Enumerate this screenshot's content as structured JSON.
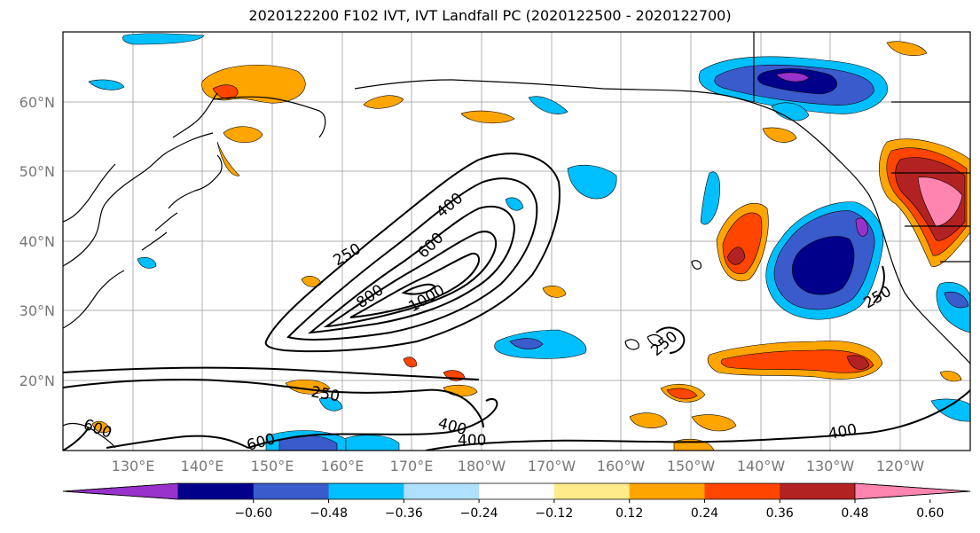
{
  "title": "2020122200 F102 IVT, IVT Landfall PC (2020122500 - 2020122700)",
  "lon_labels": [
    "130°E",
    "140°E",
    "150°E",
    "160°E",
    "170°E",
    "180°W",
    "170°W",
    "160°W",
    "150°W",
    "140°W",
    "130°W",
    "120°W"
  ],
  "lat_labels": [
    "60°N",
    "50°N",
    "40°N",
    "30°N",
    "20°N"
  ],
  "colorbar": {
    "colors": [
      "#9932cc",
      "#00008b",
      "#3a5bcc",
      "#00bfff",
      "#b0e0ff",
      "#ffffff",
      "#ffeb8a",
      "#ffa500",
      "#ff4500",
      "#b22222",
      "#ff85b0"
    ],
    "tick_labels": [
      "−0.60",
      "−0.48",
      "−0.36",
      "−0.24",
      "−0.12",
      "0.12",
      "0.24",
      "0.36",
      "0.48",
      "0.60"
    ]
  },
  "contour_labels": [
    "250",
    "400",
    "600",
    "800",
    "1000",
    "250",
    "250",
    "250",
    "400",
    "400",
    "600",
    "600",
    "400"
  ]
}
